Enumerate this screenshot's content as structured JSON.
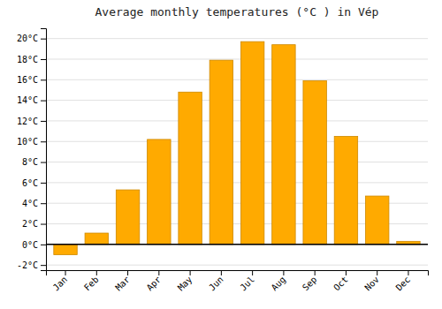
{
  "chart_data": {
    "type": "bar",
    "title": "Average monthly temperatures (°C ) in Vép",
    "categories": [
      "Jan",
      "Feb",
      "Mar",
      "Apr",
      "May",
      "Jun",
      "Jul",
      "Aug",
      "Sep",
      "Oct",
      "Nov",
      "Dec"
    ],
    "values": [
      -1.0,
      1.1,
      5.3,
      10.2,
      14.8,
      17.9,
      19.7,
      19.4,
      15.9,
      10.5,
      4.7,
      0.3
    ],
    "color": "#FFAA00",
    "ylim": [
      -2.5,
      21
    ],
    "yticks": [
      {
        "value": -2,
        "label": "-2°C"
      },
      {
        "value": 0,
        "label": "0°C"
      },
      {
        "value": 2,
        "label": "2°C"
      },
      {
        "value": 4,
        "label": "4°C"
      },
      {
        "value": 6,
        "label": "6°C"
      },
      {
        "value": 8,
        "label": "8°C"
      },
      {
        "value": 10,
        "label": "10°C"
      },
      {
        "value": 12,
        "label": "12°C"
      },
      {
        "value": 14,
        "label": "14°C"
      },
      {
        "value": 16,
        "label": "16°C"
      },
      {
        "value": 18,
        "label": "18°C"
      },
      {
        "value": 20,
        "label": "20°C"
      }
    ],
    "grid": true
  }
}
